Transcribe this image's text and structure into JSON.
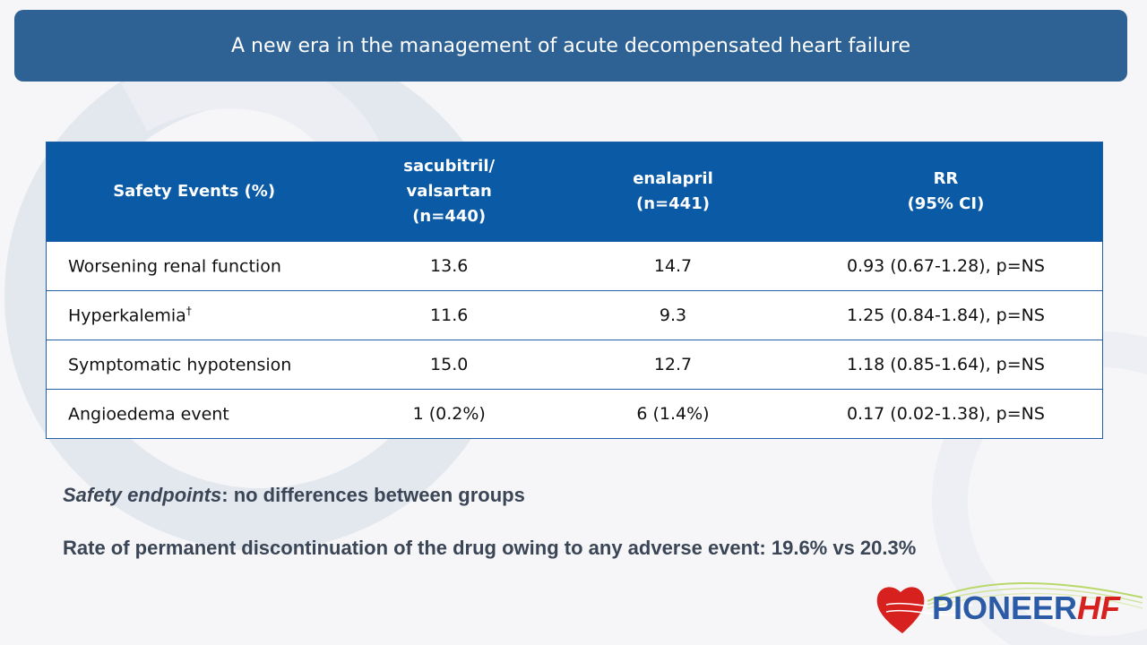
{
  "header": {
    "title": "A new era in the management of acute decompensated heart failure"
  },
  "table": {
    "headers": [
      {
        "lines": [
          "Safety Events  (%)"
        ]
      },
      {
        "lines": [
          "sacubitril/",
          "valsartan",
          "(n=440)"
        ]
      },
      {
        "lines": [
          "enalapril",
          "(n=441)"
        ]
      },
      {
        "lines": [
          "RR",
          "(95% CI)"
        ]
      }
    ],
    "rows": [
      {
        "label": "Worsening renal function",
        "sup": "",
        "sv": "13.6",
        "en": "14.7",
        "rr": "0.93 (0.67-1.28), p=NS"
      },
      {
        "label": "Hyperkalemia",
        "sup": "†",
        "sv": "11.6",
        "en": "9.3",
        "rr": "1.25 (0.84-1.84), p=NS"
      },
      {
        "label": "Symptomatic hypotension",
        "sup": "",
        "sv": "15.0",
        "en": "12.7",
        "rr": "1.18 (0.85-1.64), p=NS"
      },
      {
        "label": "Angioedema event",
        "sup": "",
        "sv": "1 (0.2%)",
        "en": "6 (1.4%)",
        "rr": "0.17 (0.02-1.38), p=NS"
      }
    ]
  },
  "notes": {
    "safety_emphasis": "Safety endpoints",
    "safety_rest": ": no differences between groups",
    "discontinuation": "Rate of permanent discontinuation of the drug owing to any adverse event: 19.6% vs 20.3%"
  },
  "logo": {
    "word1": "PIONEER",
    "word2": "HF",
    "colors": {
      "heart": "#d6211f",
      "text_blue": "#2b5aa6",
      "wave": "#b9d86a"
    }
  }
}
